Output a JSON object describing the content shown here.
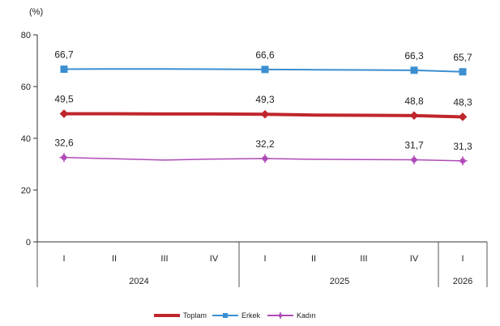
{
  "chart_data": {
    "type": "line",
    "unit_label": "(%)",
    "ylim": [
      0,
      80
    ],
    "yticks": [
      0,
      20,
      40,
      60,
      80
    ],
    "grid": false,
    "legend_position": "bottom",
    "quarters": [
      "I",
      "II",
      "III",
      "IV",
      "I",
      "II",
      "III",
      "IV",
      "I"
    ],
    "years": [
      {
        "label": "2024",
        "start": 0,
        "end": 3
      },
      {
        "label": "2025",
        "start": 4,
        "end": 7
      },
      {
        "label": "2026",
        "start": 8,
        "end": 8
      }
    ],
    "series": [
      {
        "name": "Toplam",
        "color": "#c0262d",
        "marker": "diamond",
        "values": [
          49.5,
          49.5,
          49.4,
          49.4,
          49.3,
          49.0,
          48.9,
          48.8,
          48.3
        ],
        "labels": [
          {
            "i": 0,
            "text": "49,5"
          },
          {
            "i": 4,
            "text": "49,3"
          },
          {
            "i": 7,
            "text": "48,8"
          },
          {
            "i": 8,
            "text": "48,3"
          }
        ]
      },
      {
        "name": "Erkek",
        "color": "#3b8fd1",
        "marker": "square",
        "values": [
          66.7,
          66.8,
          66.8,
          66.7,
          66.6,
          66.5,
          66.4,
          66.3,
          65.7
        ],
        "labels": [
          {
            "i": 0,
            "text": "66,7"
          },
          {
            "i": 4,
            "text": "66,6"
          },
          {
            "i": 7,
            "text": "66,3"
          },
          {
            "i": 8,
            "text": "65,7"
          }
        ]
      },
      {
        "name": "Kadın",
        "color": "#b04ab8",
        "marker": "star",
        "values": [
          32.6,
          32.1,
          31.6,
          32.0,
          32.2,
          31.9,
          31.8,
          31.7,
          31.3
        ],
        "labels": [
          {
            "i": 0,
            "text": "32,6"
          },
          {
            "i": 4,
            "text": "32,2"
          },
          {
            "i": 7,
            "text": "31,7"
          },
          {
            "i": 8,
            "text": "31,3"
          }
        ]
      }
    ]
  }
}
